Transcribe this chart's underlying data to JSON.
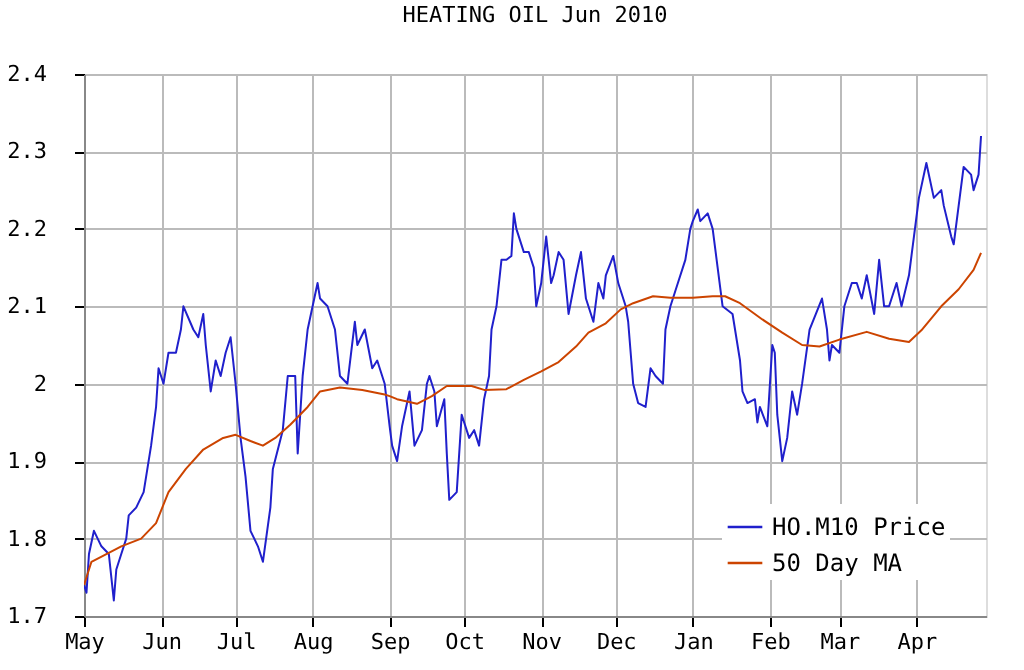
{
  "chart_data": {
    "type": "line",
    "title": "HEATING OIL Jun 2010",
    "xlim": [
      "2009-05-01",
      "2010-04-29"
    ],
    "xticks": [
      {
        "value": "2009-05-01",
        "label": "May"
      },
      {
        "value": "2009-06-01",
        "label": "Jun"
      },
      {
        "value": "2009-07-01",
        "label": "Jul"
      },
      {
        "value": "2009-08-01",
        "label": "Aug"
      },
      {
        "value": "2009-09-01",
        "label": "Sep"
      },
      {
        "value": "2009-10-01",
        "label": "Oct"
      },
      {
        "value": "2009-11-01",
        "label": "Nov"
      },
      {
        "value": "2009-12-01",
        "label": "Dec"
      },
      {
        "value": "2010-01-01",
        "label": "Jan"
      },
      {
        "value": "2010-02-01",
        "label": "Feb"
      },
      {
        "value": "2010-03-01",
        "label": "Mar"
      },
      {
        "value": "2010-04-01",
        "label": "Apr"
      }
    ],
    "ylim": [
      1.7,
      2.4
    ],
    "yticks": [
      1.7,
      1.8,
      1.9,
      2,
      2.1,
      2.2,
      2.3,
      2.4
    ],
    "grid": true,
    "legend": "bottom right",
    "marker": "none",
    "line_style": "solid",
    "series": [
      {
        "name": "HO.M10 Price",
        "color": "#2020cc",
        "x": [
          "2009-05-01",
          "2009-05-02",
          "2009-05-03",
          "2009-05-05",
          "2009-05-08",
          "2009-05-11",
          "2009-05-13",
          "2009-05-14",
          "2009-05-16",
          "2009-05-18",
          "2009-05-19",
          "2009-05-22",
          "2009-05-25",
          "2009-05-28",
          "2009-05-30",
          "2009-05-31",
          "2009-06-02",
          "2009-06-04",
          "2009-06-07",
          "2009-06-09",
          "2009-06-10",
          "2009-06-14",
          "2009-06-16",
          "2009-06-18",
          "2009-06-19",
          "2009-06-21",
          "2009-06-23",
          "2009-06-25",
          "2009-06-27",
          "2009-06-29",
          "2009-07-01",
          "2009-07-03",
          "2009-07-05",
          "2009-07-07",
          "2009-07-10",
          "2009-07-12",
          "2009-07-15",
          "2009-07-16",
          "2009-07-20",
          "2009-07-22",
          "2009-07-25",
          "2009-07-26",
          "2009-07-28",
          "2009-07-30",
          "2009-08-01",
          "2009-08-03",
          "2009-08-04",
          "2009-08-07",
          "2009-08-10",
          "2009-08-12",
          "2009-08-15",
          "2009-08-18",
          "2009-08-19",
          "2009-08-22",
          "2009-08-25",
          "2009-08-27",
          "2009-08-30",
          "2009-09-01",
          "2009-09-02",
          "2009-09-04",
          "2009-09-06",
          "2009-09-09",
          "2009-09-11",
          "2009-09-14",
          "2009-09-16",
          "2009-09-17",
          "2009-09-19",
          "2009-09-20",
          "2009-09-23",
          "2009-09-24",
          "2009-09-25",
          "2009-09-28",
          "2009-09-30",
          "2009-10-03",
          "2009-10-05",
          "2009-10-07",
          "2009-10-09",
          "2009-10-11",
          "2009-10-12",
          "2009-10-14",
          "2009-10-16",
          "2009-10-18",
          "2009-10-20",
          "2009-10-21",
          "2009-10-22",
          "2009-10-25",
          "2009-10-27",
          "2009-10-29",
          "2009-10-30",
          "2009-11-01",
          "2009-11-03",
          "2009-11-05",
          "2009-11-06",
          "2009-11-08",
          "2009-11-10",
          "2009-11-12",
          "2009-11-15",
          "2009-11-17",
          "2009-11-19",
          "2009-11-20",
          "2009-11-22",
          "2009-11-24",
          "2009-11-26",
          "2009-11-27",
          "2009-11-30",
          "2009-12-02",
          "2009-12-05",
          "2009-12-06",
          "2009-12-08",
          "2009-12-10",
          "2009-12-13",
          "2009-12-15",
          "2009-12-17",
          "2009-12-20",
          "2009-12-21",
          "2009-12-23",
          "2009-12-25",
          "2009-12-29",
          "2009-12-31",
          "2010-01-01",
          "2010-01-03",
          "2010-01-04",
          "2010-01-07",
          "2010-01-09",
          "2010-01-11",
          "2010-01-13",
          "2010-01-17",
          "2010-01-20",
          "2010-01-21",
          "2010-01-23",
          "2010-01-26",
          "2010-01-27",
          "2010-01-28",
          "2010-01-31",
          "2010-02-02",
          "2010-02-03",
          "2010-02-04",
          "2010-02-06",
          "2010-02-08",
          "2010-02-10",
          "2010-02-12",
          "2010-02-14",
          "2010-02-17",
          "2010-02-22",
          "2010-02-24",
          "2010-02-25",
          "2010-02-26",
          "2010-03-01",
          "2010-03-03",
          "2010-03-06",
          "2010-03-08",
          "2010-03-10",
          "2010-03-12",
          "2010-03-15",
          "2010-03-17",
          "2010-03-19",
          "2010-03-21",
          "2010-03-24",
          "2010-03-26",
          "2010-03-29",
          "2010-03-31",
          "2010-04-02",
          "2010-04-05",
          "2010-04-08",
          "2010-04-11",
          "2010-04-12",
          "2010-04-15",
          "2010-04-16",
          "2010-04-20",
          "2010-04-23",
          "2010-04-24",
          "2010-04-26",
          "2010-04-27"
        ],
        "values": [
          1.74,
          1.73,
          1.78,
          1.81,
          1.79,
          1.78,
          1.72,
          1.76,
          1.78,
          1.8,
          1.83,
          1.84,
          1.86,
          1.92,
          1.97,
          2.02,
          2.0,
          2.04,
          2.04,
          2.07,
          2.1,
          2.07,
          2.06,
          2.09,
          2.05,
          1.99,
          2.03,
          2.01,
          2.04,
          2.06,
          2.0,
          1.93,
          1.88,
          1.81,
          1.79,
          1.77,
          1.84,
          1.89,
          1.94,
          2.01,
          2.01,
          1.91,
          2.01,
          2.07,
          2.1,
          2.13,
          2.11,
          2.1,
          2.07,
          2.01,
          2.0,
          2.08,
          2.05,
          2.07,
          2.02,
          2.03,
          2.0,
          1.945,
          1.92,
          1.9,
          1.945,
          1.99,
          1.92,
          1.94,
          2.0,
          2.01,
          1.99,
          1.945,
          1.98,
          1.91,
          1.85,
          1.86,
          1.96,
          1.93,
          1.94,
          1.92,
          1.98,
          2.01,
          2.07,
          2.1,
          2.16,
          2.16,
          2.165,
          2.22,
          2.2,
          2.17,
          2.17,
          2.15,
          2.1,
          2.13,
          2.19,
          2.13,
          2.14,
          2.17,
          2.16,
          2.09,
          2.14,
          2.17,
          2.11,
          2.1,
          2.08,
          2.13,
          2.11,
          2.14,
          2.165,
          2.13,
          2.1,
          2.08,
          2.0,
          1.975,
          1.97,
          2.02,
          2.01,
          2.0,
          2.07,
          2.1,
          2.12,
          2.16,
          2.2,
          2.21,
          2.225,
          2.21,
          2.22,
          2.2,
          2.15,
          2.1,
          2.09,
          2.03,
          1.99,
          1.975,
          1.98,
          1.95,
          1.97,
          1.945,
          2.05,
          2.04,
          1.96,
          1.9,
          1.93,
          1.99,
          1.96,
          2.0,
          2.07,
          2.11,
          2.07,
          2.03,
          2.05,
          2.04,
          2.1,
          2.13,
          2.13,
          2.11,
          2.14,
          2.09,
          2.16,
          2.1,
          2.1,
          2.13,
          2.1,
          2.14,
          2.19,
          2.24,
          2.285,
          2.24,
          2.25,
          2.23,
          2.19,
          2.18,
          2.28,
          2.27,
          2.25,
          2.27,
          2.32
        ]
      },
      {
        "name": "50 Day MA",
        "color": "#cc4400",
        "x": [
          "2009-05-01",
          "2009-05-04",
          "2009-05-10",
          "2009-05-16",
          "2009-05-24",
          "2009-05-30",
          "2009-06-04",
          "2009-06-11",
          "2009-06-18",
          "2009-06-26",
          "2009-07-01",
          "2009-07-07",
          "2009-07-12",
          "2009-07-17",
          "2009-07-23",
          "2009-07-30",
          "2009-08-04",
          "2009-08-12",
          "2009-08-21",
          "2009-08-30",
          "2009-09-01",
          "2009-09-04",
          "2009-09-12",
          "2009-09-18",
          "2009-09-24",
          "2009-10-04",
          "2009-10-09",
          "2009-10-18",
          "2009-10-25",
          "2009-11-01",
          "2009-11-08",
          "2009-11-15",
          "2009-11-20",
          "2009-11-27",
          "2009-12-03",
          "2009-12-08",
          "2009-12-16",
          "2009-12-23",
          "2010-01-01",
          "2010-01-09",
          "2010-01-14",
          "2010-01-20",
          "2010-01-29",
          "2010-02-06",
          "2010-02-14",
          "2010-02-21",
          "2010-03-01",
          "2010-03-12",
          "2010-03-21",
          "2010-03-29",
          "2010-04-03",
          "2010-04-11",
          "2010-04-18",
          "2010-04-24",
          "2010-04-27"
        ],
        "values": [
          1.74,
          1.77,
          1.78,
          1.79,
          1.8,
          1.82,
          1.86,
          1.89,
          1.915,
          1.93,
          1.934,
          1.926,
          1.92,
          1.93,
          1.947,
          1.97,
          1.99,
          1.995,
          1.992,
          1.986,
          1.984,
          1.98,
          1.974,
          1.984,
          1.997,
          1.997,
          1.992,
          1.993,
          2.005,
          2.016,
          2.028,
          2.048,
          2.066,
          2.078,
          2.096,
          2.104,
          2.113,
          2.111,
          2.111,
          2.113,
          2.113,
          2.104,
          2.083,
          2.066,
          2.05,
          2.048,
          2.057,
          2.067,
          2.058,
          2.054,
          2.069,
          2.1,
          2.122,
          2.147,
          2.169
        ]
      }
    ]
  }
}
